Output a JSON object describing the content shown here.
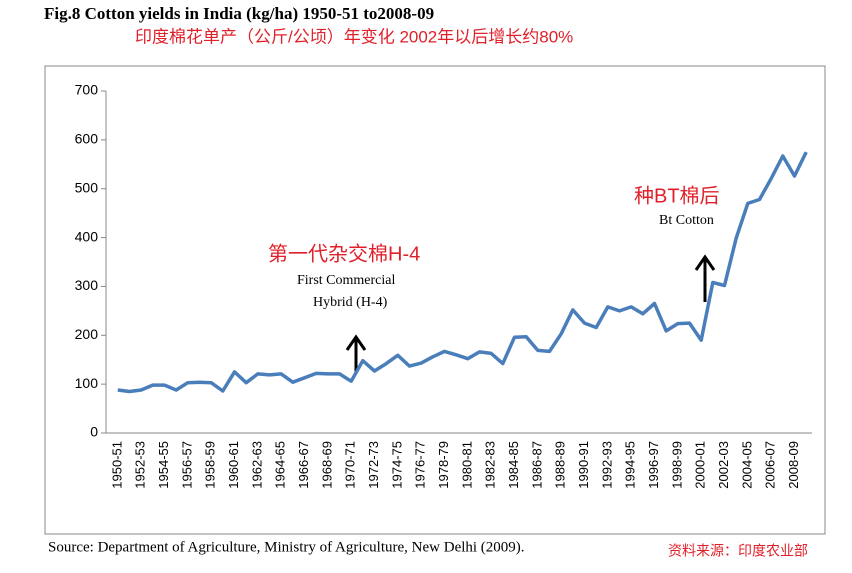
{
  "chart_data": {
    "type": "line",
    "title": "Fig.8 Cotton yields in India (kg/ha) 1950-51 to2008-09",
    "subtitle": "印度棉花单产（公斤/公顷）年变化 2002年以后增长约80%",
    "categories": [
      "1950-51",
      null,
      "1952-53",
      null,
      "1954-55",
      null,
      "1956-57",
      null,
      "1958-59",
      null,
      "1960-61",
      null,
      "1962-63",
      null,
      "1964-65",
      null,
      "1966-67",
      null,
      "1968-69",
      null,
      "1970-71",
      null,
      "1972-73",
      null,
      "1974-75",
      null,
      "1976-77",
      null,
      "1978-79",
      null,
      "1980-81",
      null,
      "1982-83",
      null,
      "1984-85",
      null,
      "1986-87",
      null,
      "1988-89",
      null,
      "1990-91",
      null,
      "1992-93",
      null,
      "1994-95",
      null,
      "1996-97",
      null,
      "1998-99",
      null,
      "2000-01",
      null,
      "2002-03",
      null,
      "2004-05",
      null,
      "2006-07",
      null,
      "2008-09",
      null
    ],
    "series": [
      {
        "name": "Cotton yield",
        "color": "#4a7ebb",
        "values": [
          88,
          85,
          88,
          98,
          98,
          88,
          103,
          104,
          103,
          86,
          125,
          103,
          121,
          119,
          121,
          104,
          113,
          122,
          121,
          121,
          106,
          148,
          127,
          142,
          159,
          137,
          143,
          156,
          167,
          160,
          152,
          166,
          163,
          142,
          196,
          197,
          169,
          167,
          203,
          252,
          225,
          216,
          258,
          250,
          258,
          244,
          265,
          209,
          224,
          225,
          190,
          308,
          302,
          399,
          470,
          478,
          521,
          567,
          526,
          575
        ]
      }
    ],
    "ylim": [
      0,
      700
    ],
    "yticks": [
      0,
      100,
      200,
      300,
      400,
      500,
      600,
      700
    ],
    "annotations": [
      "第一代杂交棉H-4",
      "First Commercial",
      "Hybrid (H-4)",
      "种BT棉后",
      "Bt Cotton"
    ],
    "source": "Source: Department of Agriculture, Ministry of Agriculture, New Delhi (2009).",
    "source_cn": "资料来源：印度农业部"
  }
}
